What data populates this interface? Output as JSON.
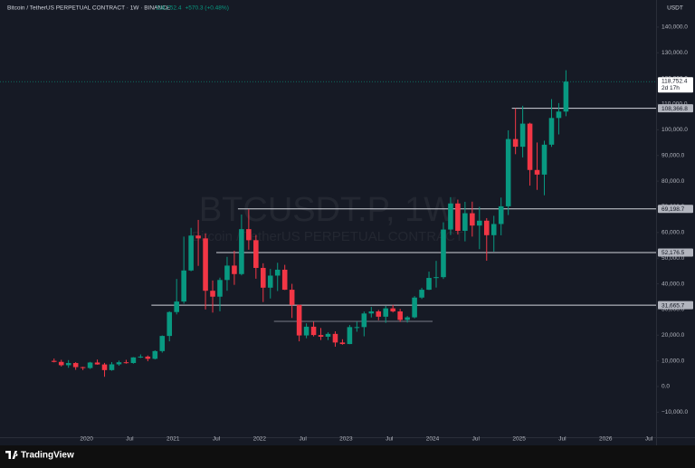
{
  "chart_data": {
    "type": "candlestick",
    "title": "Bitcoin / TetherUS PERPETUAL CONTRACT · 1W · BINANCE",
    "change_label": "+570.3 (+0.48%)",
    "watermark": "BTCUSDT.P, 1W",
    "watermark_subtitle": "Bitcoin / TetherUS PERPETUAL CONTRACT",
    "unit": "USDT",
    "up_color": "#089981",
    "down_color": "#f23645",
    "last_price": {
      "value": 118752.4,
      "label": "118,752.4",
      "countdown": "2d 17h"
    },
    "x": [
      "2019-08",
      "2019-09",
      "2019-10",
      "2019-11",
      "2019-12",
      "2020-01",
      "2020-02",
      "2020-03",
      "2020-04",
      "2020-05",
      "2020-06",
      "2020-07",
      "2020-08",
      "2020-09",
      "2020-10",
      "2020-11",
      "2020-12",
      "2021-01",
      "2021-02",
      "2021-03",
      "2021-04",
      "2021-05",
      "2021-06",
      "2021-07",
      "2021-08",
      "2021-09",
      "2021-10",
      "2021-11",
      "2021-12",
      "2022-01",
      "2022-02",
      "2022-03",
      "2022-04",
      "2022-05",
      "2022-06",
      "2022-07",
      "2022-08",
      "2022-09",
      "2022-10",
      "2022-11",
      "2022-12",
      "2023-01",
      "2023-02",
      "2023-03",
      "2023-04",
      "2023-05",
      "2023-06",
      "2023-07",
      "2023-08",
      "2023-09",
      "2023-10",
      "2023-11",
      "2023-12",
      "2024-01",
      "2024-02",
      "2024-03",
      "2024-04",
      "2024-05",
      "2024-06",
      "2024-07",
      "2024-08",
      "2024-09",
      "2024-10",
      "2024-11",
      "2024-12",
      "2025-01",
      "2025-02",
      "2025-03",
      "2025-04",
      "2025-05",
      "2025-06",
      "2025-07"
    ],
    "open": [
      10000,
      9600,
      8300,
      9150,
      7550,
      7200,
      9350,
      8600,
      6400,
      8650,
      9450,
      9150,
      11350,
      11650,
      10800,
      13800,
      19700,
      29000,
      33100,
      45200,
      58800,
      57700,
      37300,
      35000,
      41500,
      47100,
      43800,
      61300,
      57000,
      46200,
      38500,
      43200,
      45500,
      37700,
      31800,
      19900,
      23300,
      20050,
      19400,
      20500,
      17150,
      16550,
      23150,
      23150,
      28450,
      29250,
      27200,
      30450,
      29250,
      25950,
      26950,
      34650,
      37700,
      42300,
      42600,
      61150,
      71300,
      60650,
      67500,
      62700,
      64600,
      58950,
      63300,
      70200,
      96400,
      93400,
      102400,
      84350,
      82550,
      94200,
      104600,
      107100
    ],
    "high": [
      10900,
      10400,
      10300,
      9500,
      7700,
      9600,
      10500,
      9200,
      9500,
      10100,
      10400,
      11450,
      12500,
      12100,
      14100,
      19900,
      29300,
      41900,
      58400,
      61800,
      64900,
      59600,
      41300,
      42400,
      50500,
      52900,
      67000,
      69000,
      59000,
      48000,
      45800,
      48200,
      47400,
      40000,
      31900,
      24600,
      25200,
      22800,
      21100,
      21500,
      18400,
      23950,
      25300,
      29200,
      31000,
      29850,
      31400,
      31800,
      30250,
      27450,
      35200,
      38450,
      44750,
      48950,
      63950,
      73750,
      72800,
      71950,
      72000,
      70000,
      65600,
      66500,
      73600,
      99800,
      108350,
      109350,
      102750,
      95050,
      95750,
      111950,
      110400,
      123200
    ],
    "low": [
      9400,
      7800,
      7300,
      6500,
      6400,
      6850,
      8500,
      3800,
      6150,
      8100,
      8900,
      8900,
      11100,
      9850,
      10550,
      13200,
      17600,
      28100,
      32300,
      44900,
      47000,
      30000,
      28800,
      29300,
      37300,
      39600,
      43300,
      53300,
      42000,
      32900,
      34300,
      37200,
      37600,
      26700,
      17600,
      18800,
      19500,
      18100,
      18100,
      15500,
      16300,
      16500,
      21350,
      19550,
      26900,
      25800,
      24800,
      28850,
      25150,
      24900,
      26550,
      34100,
      37600,
      38550,
      41900,
      59000,
      59200,
      56550,
      58400,
      53500,
      49000,
      52550,
      58900,
      66800,
      90500,
      89250,
      78250,
      76600,
      74500,
      93350,
      98200,
      105300
    ],
    "close": [
      9600,
      8300,
      9150,
      7550,
      7200,
      9350,
      8600,
      6400,
      8650,
      9450,
      9150,
      11350,
      11650,
      10800,
      13800,
      19700,
      29000,
      33100,
      45200,
      58800,
      57700,
      37300,
      35000,
      41500,
      47100,
      43800,
      61300,
      57000,
      46200,
      38500,
      43200,
      45500,
      37700,
      31800,
      19900,
      23300,
      20050,
      19400,
      20500,
      17150,
      16550,
      23150,
      23150,
      28450,
      29250,
      27200,
      30450,
      29250,
      25950,
      26950,
      34650,
      37700,
      42300,
      42600,
      61150,
      71300,
      60650,
      67500,
      62700,
      64600,
      58950,
      63300,
      70200,
      96400,
      93400,
      102400,
      84350,
      82550,
      94200,
      104600,
      107100,
      118752.4
    ],
    "levels": [
      {
        "value": 108366.8,
        "label": "108,366.8",
        "start": "2024-12"
      },
      {
        "value": 69198.7,
        "label": "69,198.7",
        "start": "2021-10"
      },
      {
        "value": 52176.5,
        "label": "52,176.5",
        "start": "2021-07"
      },
      {
        "value": 31665.7,
        "label": "31,665.7",
        "start": "2020-10"
      }
    ],
    "support": {
      "value": 25400,
      "start": "2022-03",
      "end": "2024-01"
    },
    "xlim": [
      "2019-01",
      "2026-08"
    ],
    "xticks": [
      {
        "value": "2020-01",
        "label": "2020"
      },
      {
        "value": "2020-07",
        "label": "Jul"
      },
      {
        "value": "2021-01",
        "label": "2021"
      },
      {
        "value": "2021-07",
        "label": "Jul"
      },
      {
        "value": "2022-01",
        "label": "2022"
      },
      {
        "value": "2022-07",
        "label": "Jul"
      },
      {
        "value": "2023-01",
        "label": "2023"
      },
      {
        "value": "2023-07",
        "label": "Jul"
      },
      {
        "value": "2024-01",
        "label": "2024"
      },
      {
        "value": "2024-07",
        "label": "Jul"
      },
      {
        "value": "2025-01",
        "label": "2025"
      },
      {
        "value": "2025-07",
        "label": "Jul"
      },
      {
        "value": "2026-01",
        "label": "2026"
      },
      {
        "value": "2026-07",
        "label": "Jul"
      }
    ],
    "ylim": [
      -19750,
      150560
    ],
    "yticks": [
      {
        "value": -10000,
        "label": "−10,000.0"
      },
      {
        "value": 0,
        "label": "0.0"
      },
      {
        "value": 10000,
        "label": "10,000.0"
      },
      {
        "value": 20000,
        "label": "20,000.0"
      },
      {
        "value": 30000,
        "label": "30,000.0"
      },
      {
        "value": 40000,
        "label": "40,000.0"
      },
      {
        "value": 50000,
        "label": "50,000.0"
      },
      {
        "value": 60000,
        "label": "60,000.0"
      },
      {
        "value": 70000,
        "label": "70,000.0"
      },
      {
        "value": 80000,
        "label": "80,000.0"
      },
      {
        "value": 90000,
        "label": "90,000.0"
      },
      {
        "value": 100000,
        "label": "100,000.0"
      },
      {
        "value": 110000,
        "label": "110,000.0"
      },
      {
        "value": 120000,
        "label": "120,000.0"
      },
      {
        "value": 130000,
        "label": "130,000.0"
      },
      {
        "value": 140000,
        "label": "140,000.0"
      }
    ]
  },
  "footer": {
    "brand": "TradingView"
  }
}
